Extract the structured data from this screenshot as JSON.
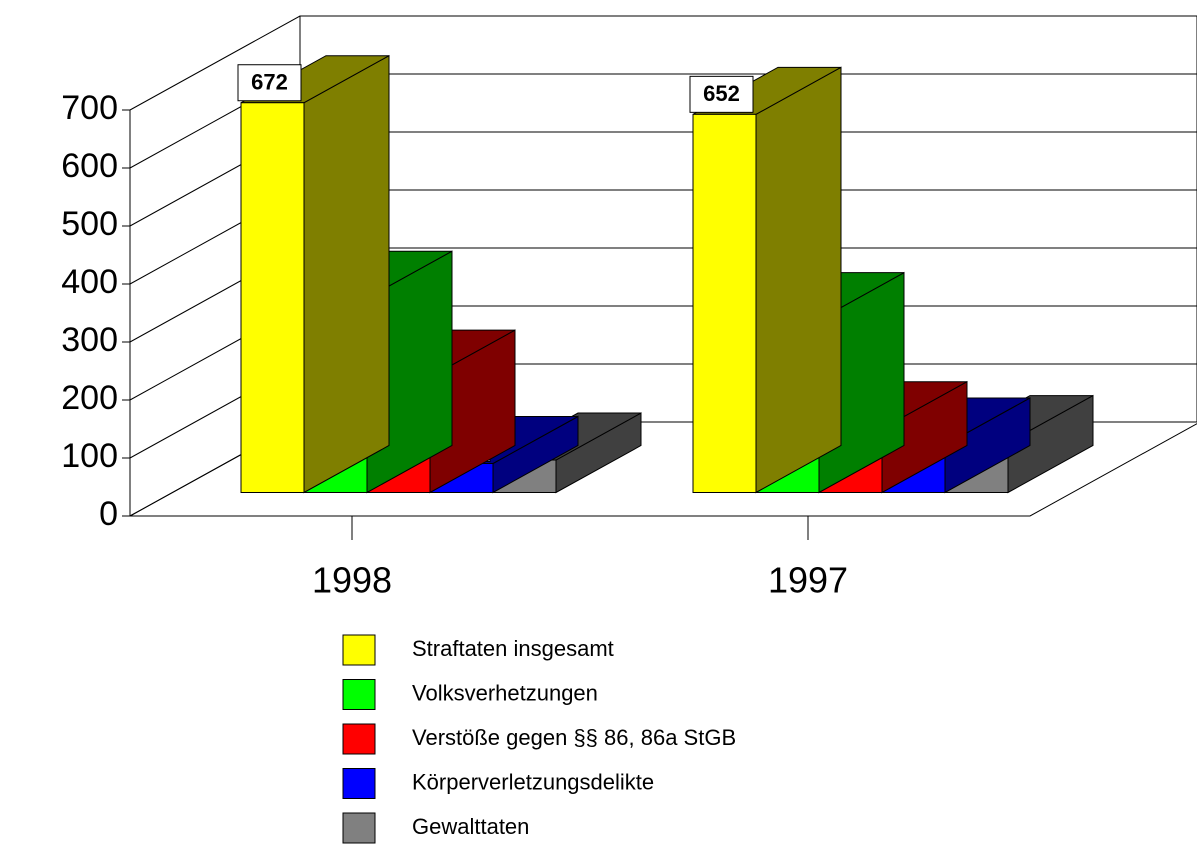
{
  "chart_data": {
    "type": "bar3d",
    "categories": [
      "1998",
      "1997"
    ],
    "series": [
      {
        "name": "Straftaten insgesamt",
        "color": "#ffff00",
        "values": [
          672,
          652
        ]
      },
      {
        "name": "Volksverhetzungen",
        "color": "#00ff00",
        "values": [
          335,
          298
        ]
      },
      {
        "name": "Verstöße gegen §§ 86, 86a StGB",
        "color": "#ff0000",
        "values": [
          199,
          110
        ]
      },
      {
        "name": "Körperverletzungsdelikte",
        "color": "#0000ff",
        "values": [
          50,
          82
        ]
      },
      {
        "name": "Gewalttaten",
        "color": "#808080",
        "values": [
          56,
          86
        ]
      }
    ],
    "ylim": [
      0,
      700
    ],
    "yticks": [
      0,
      100,
      200,
      300,
      400,
      500,
      600,
      700
    ],
    "grid": true
  }
}
